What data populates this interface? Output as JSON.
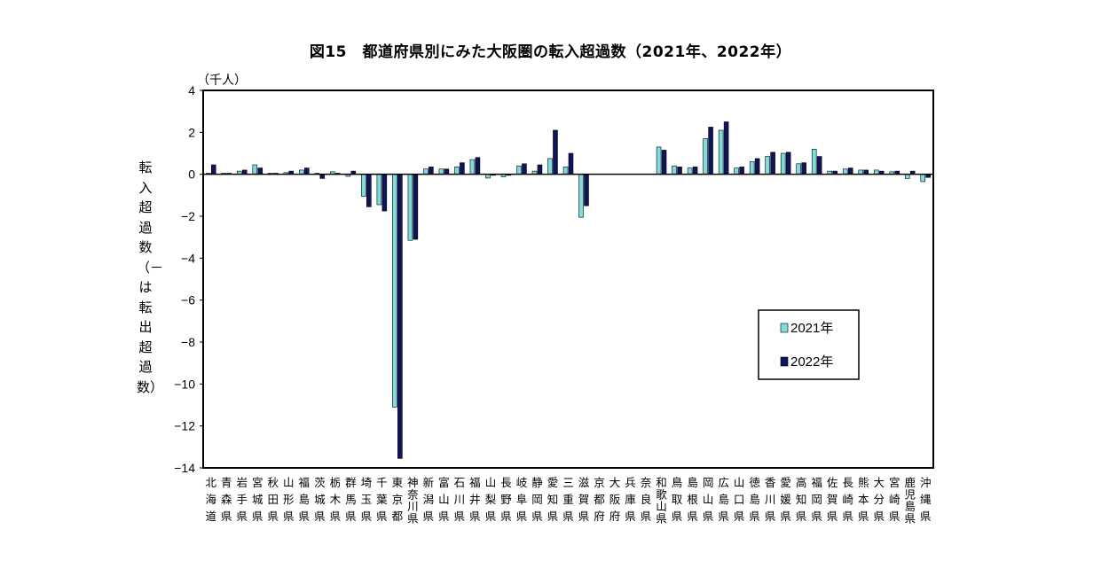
{
  "chart_data": {
    "type": "bar",
    "title": "図15　都道府県別にみた大阪圏の転入超過数（2021年、2022年）",
    "unit": "（千人）",
    "ylabel": "転入超過数（－は転出超過数）",
    "ylim": [
      -14,
      4
    ],
    "yticks": [
      4,
      2,
      0,
      -2,
      -4,
      -6,
      -8,
      -10,
      -12,
      -14
    ],
    "ytick_labels": [
      "4",
      "2",
      "0",
      "−2",
      "−4",
      "−6",
      "−8",
      "−10",
      "−12",
      "−14"
    ],
    "legend_position": "lower-right",
    "categories": [
      "北海道",
      "青森県",
      "岩手県",
      "宮城県",
      "秋田県",
      "山形県",
      "福島県",
      "茨城県",
      "栃木県",
      "群馬県",
      "埼玉県",
      "千葉県",
      "東京都",
      "神奈川県",
      "新潟県",
      "富山県",
      "石川県",
      "福井県",
      "山梨県",
      "長野県",
      "岐阜県",
      "静岡県",
      "愛知県",
      "三重県",
      "滋賀県",
      "京都府",
      "大阪府",
      "兵庫県",
      "奈良県",
      "和歌山県",
      "鳥取県",
      "島根県",
      "岡山県",
      "広島県",
      "山口県",
      "徳島県",
      "香川県",
      "愛媛県",
      "高知県",
      "福岡県",
      "佐賀県",
      "長崎県",
      "熊本県",
      "大分県",
      "宮崎県",
      "鹿児島県",
      "沖縄県"
    ],
    "series": [
      {
        "name": "2021年",
        "color": "#7fdcdc",
        "values": [
          0.05,
          0.05,
          0.15,
          0.45,
          0.05,
          0.08,
          0.2,
          0.05,
          0.12,
          -0.1,
          -1.05,
          -1.45,
          -11.1,
          -3.15,
          0.25,
          0.25,
          0.35,
          0.7,
          -0.18,
          -0.12,
          0.4,
          0.15,
          0.75,
          0.35,
          -2.05,
          0,
          0,
          0,
          0,
          1.3,
          0.4,
          0.3,
          1.7,
          2.1,
          0.3,
          0.6,
          0.85,
          1.0,
          0.5,
          1.2,
          0.15,
          0.25,
          0.2,
          0.2,
          0.12,
          -0.2,
          -0.35
        ]
      },
      {
        "name": "2022年",
        "color": "#10145a",
        "values": [
          0.45,
          0.05,
          0.2,
          0.3,
          0.05,
          0.15,
          0.3,
          -0.2,
          0.05,
          0.15,
          -1.55,
          -1.75,
          -13.55,
          -3.1,
          0.35,
          0.25,
          0.55,
          0.8,
          -0.05,
          -0.05,
          0.5,
          0.45,
          2.1,
          1.0,
          -1.5,
          0,
          0,
          0,
          0,
          1.15,
          0.35,
          0.35,
          2.25,
          2.5,
          0.35,
          0.75,
          1.05,
          1.05,
          0.55,
          0.85,
          0.15,
          0.3,
          0.2,
          0.15,
          0.15,
          0.15,
          -0.15
        ]
      }
    ]
  }
}
